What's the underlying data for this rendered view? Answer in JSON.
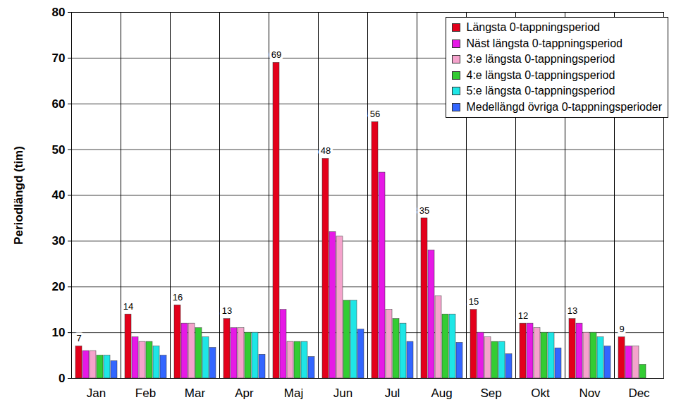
{
  "chart_data": {
    "type": "bar",
    "y_label": "Periodlängd (tim)",
    "categories": [
      "Jan",
      "Feb",
      "Mar",
      "Apr",
      "Maj",
      "Jun",
      "Jul",
      "Aug",
      "Sep",
      "Okt",
      "Nov",
      "Dec"
    ],
    "series": [
      {
        "name": "Längsta 0-tappningsperiod",
        "color": "#e3001b",
        "data_labels": true,
        "values": [
          7,
          14,
          16,
          13,
          69,
          48,
          56,
          35,
          15,
          12,
          13,
          9
        ]
      },
      {
        "name": "Näst längsta 0-tappningsperiod",
        "color": "#e619e6",
        "values": [
          6,
          9,
          12,
          11,
          15,
          32,
          45,
          28,
          10,
          12,
          12,
          7
        ]
      },
      {
        "name": "3:e längsta 0-tappningsperiod",
        "color": "#f5a3cc",
        "values": [
          6,
          8,
          12,
          11,
          8,
          31,
          15,
          18,
          9,
          11,
          10,
          7
        ]
      },
      {
        "name": "4:e längsta 0-tappningsperiod",
        "color": "#33cc33",
        "values": [
          5,
          8,
          11,
          10,
          8,
          17,
          13,
          14,
          8,
          10,
          10,
          3
        ]
      },
      {
        "name": "5:e längsta 0-tappningsperiod",
        "color": "#1ee6e6",
        "values": [
          5,
          7,
          9,
          10,
          8,
          17,
          12,
          14,
          8,
          10,
          9,
          null
        ]
      },
      {
        "name": "Medellängd övriga 0-tappningsperioder",
        "color": "#3366ff",
        "values": [
          3.8,
          5,
          6.7,
          5.2,
          4.7,
          10.7,
          8,
          7.8,
          5.3,
          6.6,
          7,
          null
        ]
      }
    ],
    "ylim": [
      0,
      80
    ],
    "yticks": [
      0,
      10,
      20,
      30,
      40,
      50,
      60,
      70,
      80
    ],
    "grid": true,
    "legend": "top-right"
  }
}
